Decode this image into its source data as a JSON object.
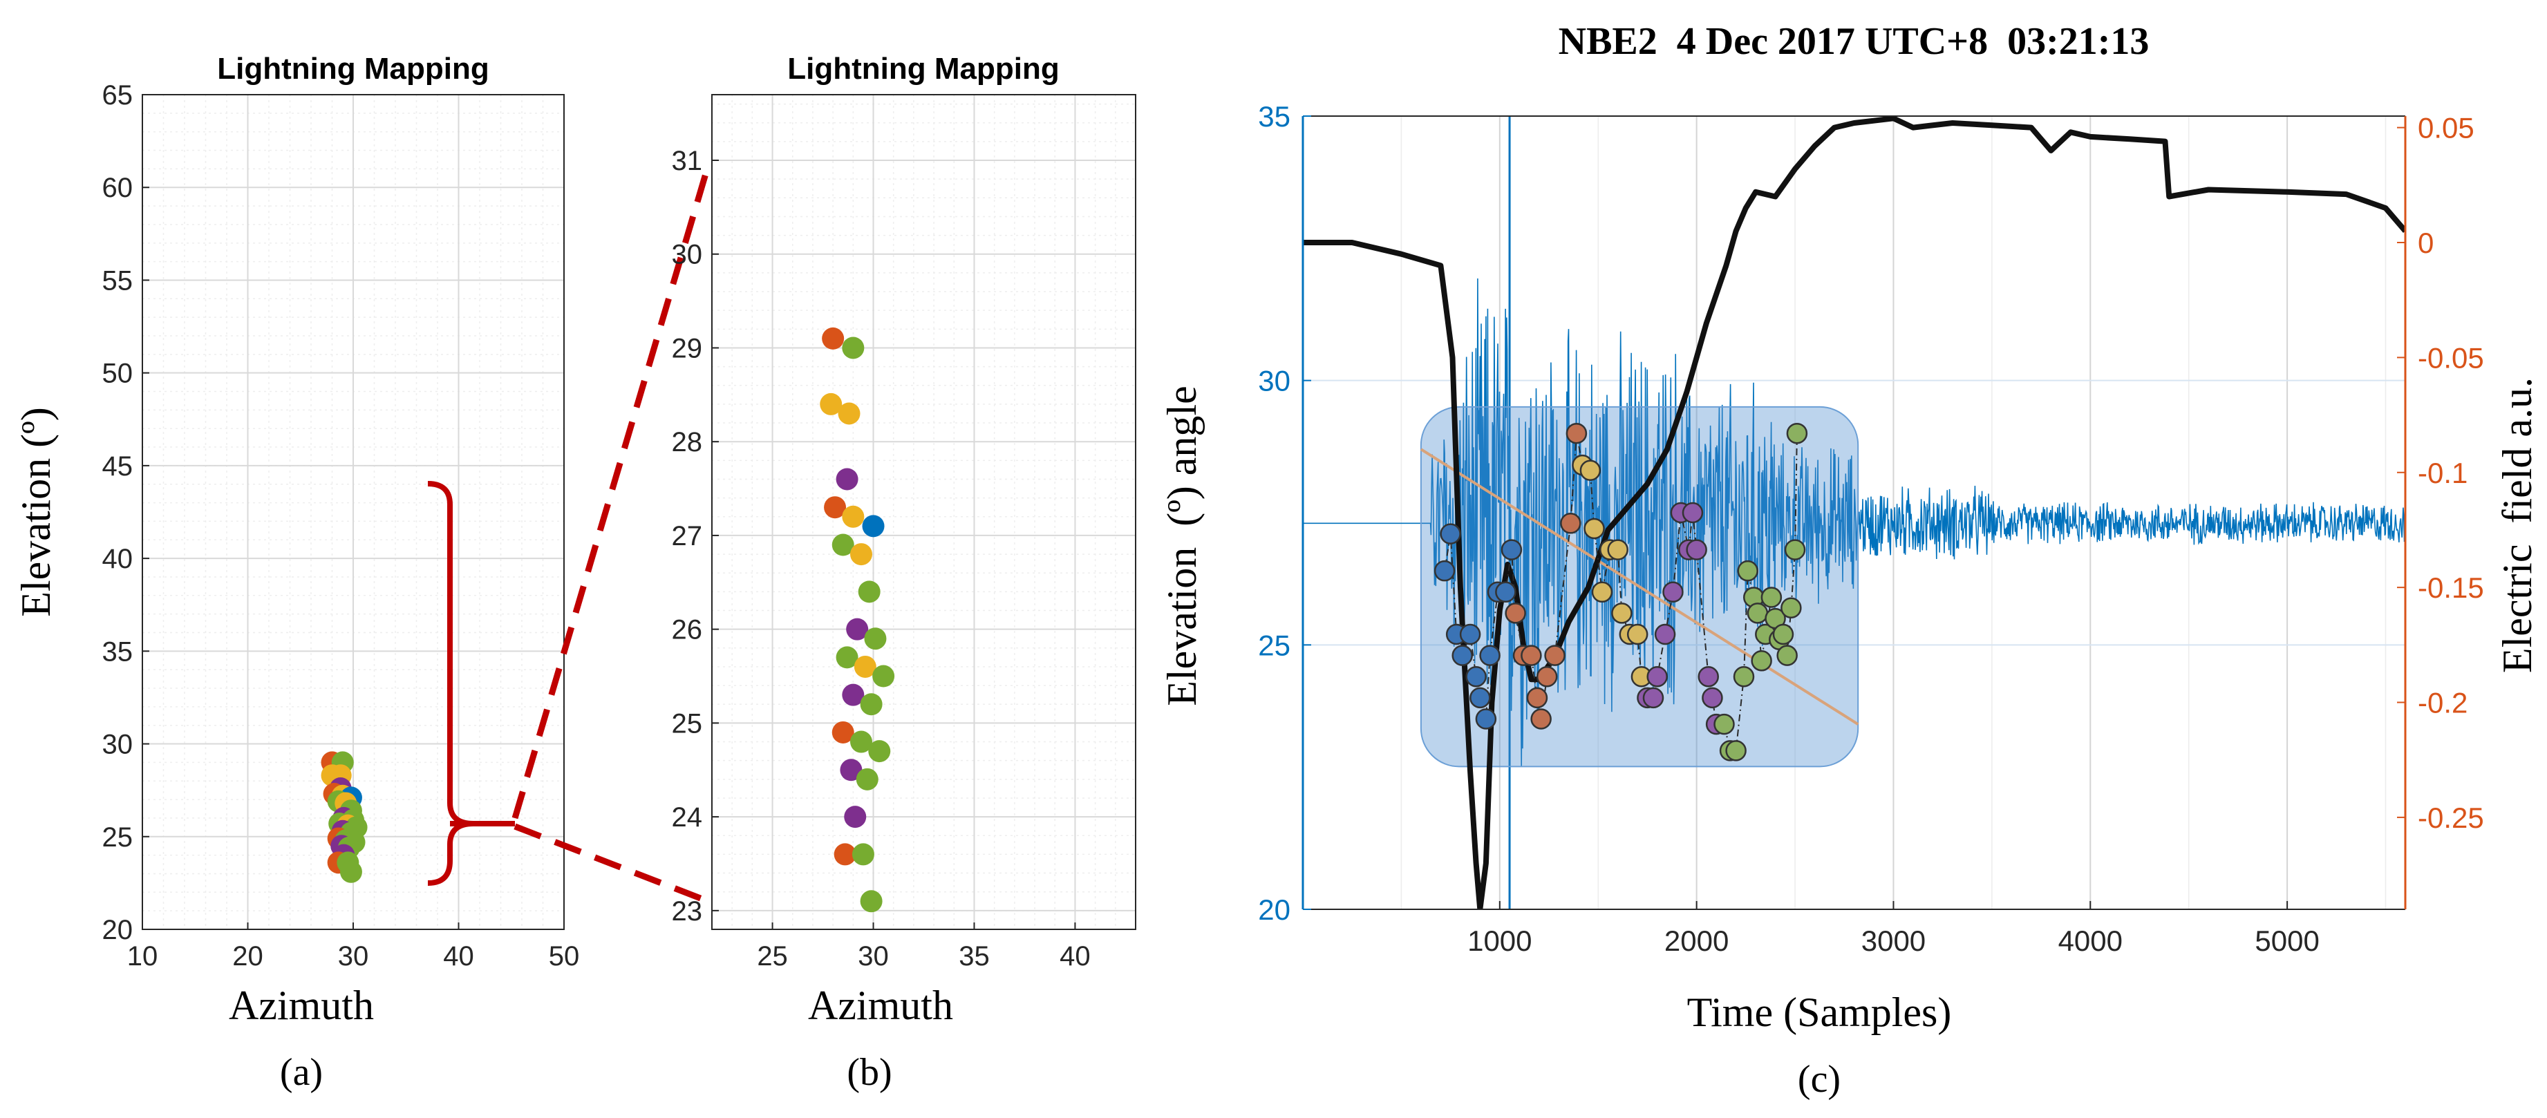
{
  "colors": {
    "grid_major": "#d9d9d9",
    "grid_minor": "#eeeeee",
    "axis": "#262626",
    "tick_text": "#262626",
    "left_axis_blue": "#0072bd",
    "right_axis_orange": "#d95319",
    "signal_blue": "#0072bd",
    "bracket_red": "#c00000",
    "highlight_fill": "#4f8fd0",
    "trend_line": "#d9a37a",
    "field_black": "#111111"
  },
  "chart_data": [
    {
      "id": "a",
      "type": "scatter",
      "title": "Lightning Mapping",
      "xlabel": "Azimuth",
      "ylabel": "Elevation (º)",
      "panel_label": "(a)",
      "xlim": [
        10,
        50
      ],
      "ylim": [
        20,
        65
      ],
      "xticks": [
        10,
        20,
        30,
        40,
        50
      ],
      "yticks": [
        20,
        25,
        30,
        35,
        40,
        45,
        50,
        55,
        60,
        65
      ],
      "grid": true,
      "points": [
        {
          "x": 28.0,
          "y": 29.0,
          "color": "#d95319"
        },
        {
          "x": 29.0,
          "y": 29.0,
          "color": "#77ac30"
        },
        {
          "x": 28.0,
          "y": 28.3,
          "color": "#edb120"
        },
        {
          "x": 28.8,
          "y": 28.3,
          "color": "#edb120"
        },
        {
          "x": 28.8,
          "y": 27.6,
          "color": "#7e2f8e"
        },
        {
          "x": 28.2,
          "y": 27.3,
          "color": "#d95319"
        },
        {
          "x": 29.0,
          "y": 27.2,
          "color": "#edb120"
        },
        {
          "x": 29.8,
          "y": 27.1,
          "color": "#0072bd"
        },
        {
          "x": 28.6,
          "y": 26.9,
          "color": "#77ac30"
        },
        {
          "x": 29.3,
          "y": 26.8,
          "color": "#edb120"
        },
        {
          "x": 29.8,
          "y": 26.4,
          "color": "#77ac30"
        },
        {
          "x": 29.1,
          "y": 26.0,
          "color": "#7e2f8e"
        },
        {
          "x": 30.0,
          "y": 25.9,
          "color": "#77ac30"
        },
        {
          "x": 28.7,
          "y": 25.7,
          "color": "#77ac30"
        },
        {
          "x": 29.5,
          "y": 25.6,
          "color": "#edb120"
        },
        {
          "x": 30.3,
          "y": 25.5,
          "color": "#77ac30"
        },
        {
          "x": 29.0,
          "y": 25.3,
          "color": "#7e2f8e"
        },
        {
          "x": 29.8,
          "y": 25.2,
          "color": "#77ac30"
        },
        {
          "x": 28.6,
          "y": 24.9,
          "color": "#d95319"
        },
        {
          "x": 29.3,
          "y": 24.8,
          "color": "#77ac30"
        },
        {
          "x": 30.1,
          "y": 24.7,
          "color": "#77ac30"
        },
        {
          "x": 28.9,
          "y": 24.5,
          "color": "#7e2f8e"
        },
        {
          "x": 29.6,
          "y": 24.4,
          "color": "#77ac30"
        },
        {
          "x": 29.1,
          "y": 24.0,
          "color": "#7e2f8e"
        },
        {
          "x": 28.6,
          "y": 23.6,
          "color": "#d95319"
        },
        {
          "x": 29.5,
          "y": 23.6,
          "color": "#77ac30"
        },
        {
          "x": 29.8,
          "y": 23.1,
          "color": "#77ac30"
        }
      ]
    },
    {
      "id": "b",
      "type": "scatter",
      "title": "Lightning Mapping",
      "xlabel": "Azimuth",
      "ylabel": "",
      "panel_label": "(b)",
      "xlim": [
        22,
        43
      ],
      "ylim": [
        22.8,
        31.7
      ],
      "xticks": [
        25,
        30,
        35,
        40
      ],
      "yticks": [
        23,
        24,
        25,
        26,
        27,
        28,
        29,
        30,
        31
      ],
      "grid": true,
      "points": [
        {
          "x": 28.0,
          "y": 29.1,
          "color": "#d95319"
        },
        {
          "x": 29.0,
          "y": 29.0,
          "color": "#77ac30"
        },
        {
          "x": 27.9,
          "y": 28.4,
          "color": "#edb120"
        },
        {
          "x": 28.8,
          "y": 28.3,
          "color": "#edb120"
        },
        {
          "x": 28.7,
          "y": 27.6,
          "color": "#7e2f8e"
        },
        {
          "x": 28.1,
          "y": 27.3,
          "color": "#d95319"
        },
        {
          "x": 29.0,
          "y": 27.2,
          "color": "#edb120"
        },
        {
          "x": 30.0,
          "y": 27.1,
          "color": "#0072bd"
        },
        {
          "x": 28.5,
          "y": 26.9,
          "color": "#77ac30"
        },
        {
          "x": 29.4,
          "y": 26.8,
          "color": "#edb120"
        },
        {
          "x": 29.8,
          "y": 26.4,
          "color": "#77ac30"
        },
        {
          "x": 29.2,
          "y": 26.0,
          "color": "#7e2f8e"
        },
        {
          "x": 30.1,
          "y": 25.9,
          "color": "#77ac30"
        },
        {
          "x": 28.7,
          "y": 25.7,
          "color": "#77ac30"
        },
        {
          "x": 29.6,
          "y": 25.6,
          "color": "#edb120"
        },
        {
          "x": 30.5,
          "y": 25.5,
          "color": "#77ac30"
        },
        {
          "x": 29.0,
          "y": 25.3,
          "color": "#7e2f8e"
        },
        {
          "x": 29.9,
          "y": 25.2,
          "color": "#77ac30"
        },
        {
          "x": 28.5,
          "y": 24.9,
          "color": "#d95319"
        },
        {
          "x": 29.4,
          "y": 24.8,
          "color": "#77ac30"
        },
        {
          "x": 30.3,
          "y": 24.7,
          "color": "#77ac30"
        },
        {
          "x": 28.9,
          "y": 24.5,
          "color": "#7e2f8e"
        },
        {
          "x": 29.7,
          "y": 24.4,
          "color": "#77ac30"
        },
        {
          "x": 29.1,
          "y": 24.0,
          "color": "#7e2f8e"
        },
        {
          "x": 28.6,
          "y": 23.6,
          "color": "#d95319"
        },
        {
          "x": 29.5,
          "y": 23.6,
          "color": "#77ac30"
        },
        {
          "x": 29.9,
          "y": 23.1,
          "color": "#77ac30"
        }
      ]
    },
    {
      "id": "c",
      "type": "line",
      "title": "NBE2  4 Dec 2017 UTC+8  03:21:13",
      "xlabel": "Time (Samples)",
      "ylabel": "Elevation  (º) angle",
      "y2label": "Electric  field a.u.",
      "panel_label": "(c)",
      "xlim": [
        0,
        5600
      ],
      "ylim": [
        20,
        35
      ],
      "y2lim": [
        -0.29,
        0.055
      ],
      "xticks": [
        1000,
        2000,
        3000,
        4000,
        5000
      ],
      "yticks": [
        20,
        25,
        30,
        35
      ],
      "y2ticks": [
        0.05,
        0,
        -0.05,
        -0.1,
        -0.15,
        -0.2,
        -0.25
      ],
      "y2ticklabels": [
        "0.05",
        "0",
        "-0.05",
        "-0.1",
        "-0.15",
        "-0.2",
        "-0.25"
      ],
      "grid": true,
      "highlight_region": {
        "x0": 600,
        "x1": 2820,
        "y0": 22.7,
        "y1": 29.5
      },
      "trend_line": {
        "x0": 600,
        "y0": 28.7,
        "x1": 2820,
        "y1": 23.5
      },
      "baseline_y": 27.3,
      "electric_field": {
        "x": [
          0,
          250,
          500,
          700,
          760,
          800,
          850,
          880,
          900,
          930,
          960,
          1000,
          1040,
          1080,
          1120,
          1160,
          1200,
          1280,
          1350,
          1450,
          1550,
          1650,
          1750,
          1850,
          1950,
          2050,
          2150,
          2200,
          2250,
          2300,
          2400,
          2500,
          2600,
          2700,
          2800,
          2900,
          3000,
          3100,
          3300,
          3500,
          3700,
          3800,
          3900,
          4000,
          4200,
          4380,
          4400,
          4600,
          5000,
          5300,
          5500,
          5600
        ],
        "values": [
          0,
          0,
          -0.005,
          -0.01,
          -0.05,
          -0.15,
          -0.23,
          -0.27,
          -0.29,
          -0.27,
          -0.2,
          -0.16,
          -0.14,
          -0.15,
          -0.175,
          -0.19,
          -0.19,
          -0.18,
          -0.165,
          -0.15,
          -0.125,
          -0.115,
          -0.105,
          -0.09,
          -0.065,
          -0.035,
          -0.01,
          0.005,
          0.015,
          0.022,
          0.02,
          0.032,
          0.042,
          0.05,
          0.052,
          0.053,
          0.054,
          0.05,
          0.052,
          0.051,
          0.05,
          0.04,
          0.048,
          0.046,
          0.045,
          0.044,
          0.02,
          0.023,
          0.022,
          0.021,
          0.015,
          0.005
        ]
      },
      "markers": [
        {
          "x": 720,
          "y": 26.4,
          "color": "#3a73b5"
        },
        {
          "x": 750,
          "y": 27.1,
          "color": "#3a73b5"
        },
        {
          "x": 780,
          "y": 25.2,
          "color": "#3a73b5"
        },
        {
          "x": 810,
          "y": 24.8,
          "color": "#3a73b5"
        },
        {
          "x": 850,
          "y": 25.2,
          "color": "#3a73b5"
        },
        {
          "x": 880,
          "y": 24.4,
          "color": "#3a73b5"
        },
        {
          "x": 900,
          "y": 24.0,
          "color": "#3a73b5"
        },
        {
          "x": 930,
          "y": 23.6,
          "color": "#3a73b5"
        },
        {
          "x": 950,
          "y": 24.8,
          "color": "#3a73b5"
        },
        {
          "x": 990,
          "y": 26.0,
          "color": "#3a73b5"
        },
        {
          "x": 1030,
          "y": 26.0,
          "color": "#3a73b5"
        },
        {
          "x": 1060,
          "y": 26.8,
          "color": "#3a73b5"
        },
        {
          "x": 1080,
          "y": 25.6,
          "color": "#c07050"
        },
        {
          "x": 1120,
          "y": 24.8,
          "color": "#c07050"
        },
        {
          "x": 1160,
          "y": 24.8,
          "color": "#c07050"
        },
        {
          "x": 1190,
          "y": 24.0,
          "color": "#c07050"
        },
        {
          "x": 1210,
          "y": 23.6,
          "color": "#c07050"
        },
        {
          "x": 1240,
          "y": 24.4,
          "color": "#c07050"
        },
        {
          "x": 1280,
          "y": 24.8,
          "color": "#c07050"
        },
        {
          "x": 1360,
          "y": 27.3,
          "color": "#c07050"
        },
        {
          "x": 1390,
          "y": 29.0,
          "color": "#c07050"
        },
        {
          "x": 1420,
          "y": 28.4,
          "color": "#d6b860"
        },
        {
          "x": 1460,
          "y": 28.3,
          "color": "#d6b860"
        },
        {
          "x": 1480,
          "y": 27.2,
          "color": "#d6b860"
        },
        {
          "x": 1520,
          "y": 26.0,
          "color": "#d6b860"
        },
        {
          "x": 1560,
          "y": 26.8,
          "color": "#d6b860"
        },
        {
          "x": 1600,
          "y": 26.8,
          "color": "#d6b860"
        },
        {
          "x": 1620,
          "y": 25.6,
          "color": "#d6b860"
        },
        {
          "x": 1660,
          "y": 25.2,
          "color": "#d6b860"
        },
        {
          "x": 1700,
          "y": 25.2,
          "color": "#d6b860"
        },
        {
          "x": 1720,
          "y": 24.4,
          "color": "#d6b860"
        },
        {
          "x": 1750,
          "y": 24.0,
          "color": "#8e5aa8"
        },
        {
          "x": 1780,
          "y": 24.0,
          "color": "#8e5aa8"
        },
        {
          "x": 1800,
          "y": 24.4,
          "color": "#8e5aa8"
        },
        {
          "x": 1840,
          "y": 25.2,
          "color": "#8e5aa8"
        },
        {
          "x": 1880,
          "y": 26.0,
          "color": "#8e5aa8"
        },
        {
          "x": 1920,
          "y": 27.5,
          "color": "#8e5aa8"
        },
        {
          "x": 1960,
          "y": 26.8,
          "color": "#8e5aa8"
        },
        {
          "x": 1980,
          "y": 27.5,
          "color": "#8e5aa8"
        },
        {
          "x": 2000,
          "y": 26.8,
          "color": "#8e5aa8"
        },
        {
          "x": 2060,
          "y": 24.4,
          "color": "#8e5aa8"
        },
        {
          "x": 2080,
          "y": 24.0,
          "color": "#8e5aa8"
        },
        {
          "x": 2100,
          "y": 23.5,
          "color": "#8e5aa8"
        },
        {
          "x": 2140,
          "y": 23.5,
          "color": "#8bb060"
        },
        {
          "x": 2170,
          "y": 23.0,
          "color": "#8bb060"
        },
        {
          "x": 2200,
          "y": 23.0,
          "color": "#8bb060"
        },
        {
          "x": 2240,
          "y": 24.4,
          "color": "#8bb060"
        },
        {
          "x": 2260,
          "y": 26.4,
          "color": "#8bb060"
        },
        {
          "x": 2290,
          "y": 25.9,
          "color": "#8bb060"
        },
        {
          "x": 2310,
          "y": 25.6,
          "color": "#8bb060"
        },
        {
          "x": 2330,
          "y": 24.7,
          "color": "#8bb060"
        },
        {
          "x": 2350,
          "y": 25.2,
          "color": "#8bb060"
        },
        {
          "x": 2380,
          "y": 25.9,
          "color": "#8bb060"
        },
        {
          "x": 2400,
          "y": 25.5,
          "color": "#8bb060"
        },
        {
          "x": 2420,
          "y": 25.1,
          "color": "#8bb060"
        },
        {
          "x": 2440,
          "y": 25.2,
          "color": "#8bb060"
        },
        {
          "x": 2460,
          "y": 24.8,
          "color": "#8bb060"
        },
        {
          "x": 2480,
          "y": 25.7,
          "color": "#8bb060"
        },
        {
          "x": 2500,
          "y": 26.8,
          "color": "#8bb060"
        },
        {
          "x": 2510,
          "y": 29.0,
          "color": "#8bb060"
        }
      ]
    }
  ]
}
